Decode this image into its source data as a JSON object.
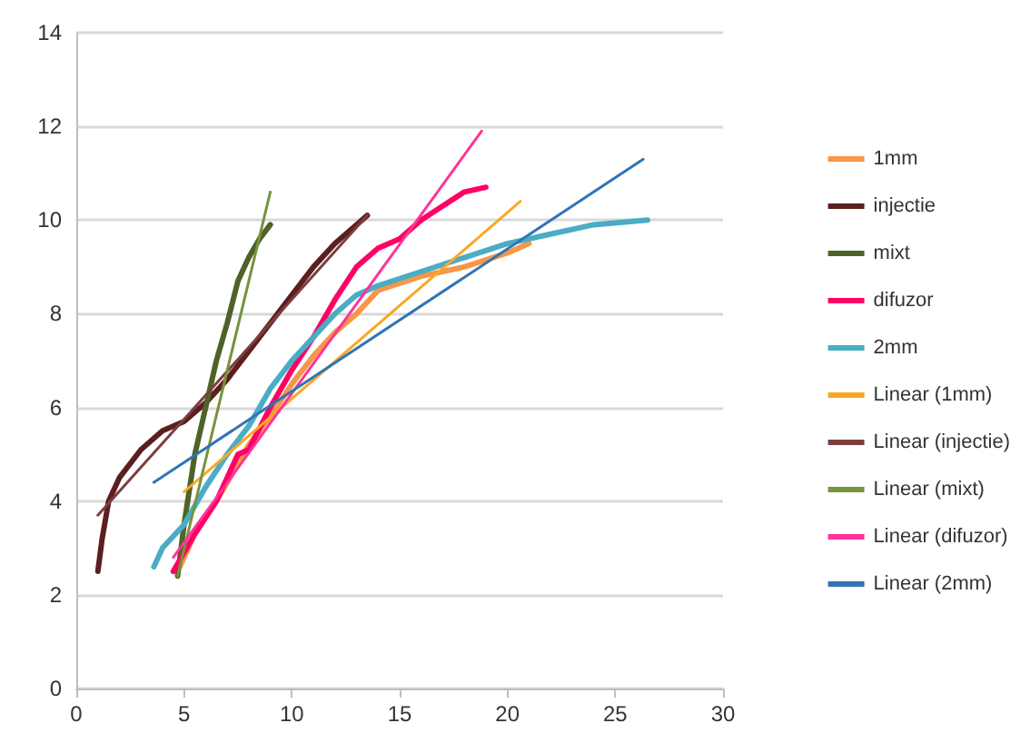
{
  "chart_data": {
    "type": "line",
    "xlim": [
      0,
      30
    ],
    "xticks": [
      0,
      5,
      10,
      15,
      20,
      25,
      30
    ],
    "ylim": [
      0,
      14
    ],
    "yticks": [
      0,
      2,
      4,
      6,
      8,
      10,
      12,
      14
    ],
    "grid": "y",
    "legend": "right",
    "marker": "none",
    "line_style": "solid",
    "series": [
      {
        "name": "1mm",
        "color": "#f79646",
        "x": [
          4.8,
          5.5,
          6.5,
          7.5,
          8,
          9,
          10,
          11,
          12,
          13,
          14,
          16,
          18,
          20,
          21
        ],
        "values": [
          2.6,
          3.3,
          4.0,
          4.8,
          5.2,
          5.8,
          6.5,
          7.1,
          7.6,
          8.0,
          8.5,
          8.8,
          9.0,
          9.3,
          9.5
        ]
      },
      {
        "name": "injectie",
        "color": "#5c1f1f",
        "x": [
          1,
          1.2,
          1.5,
          2,
          3,
          4,
          5,
          6,
          7,
          8,
          9,
          10,
          11,
          12,
          13,
          13.5
        ],
        "values": [
          2.5,
          3.2,
          4.0,
          4.5,
          5.1,
          5.5,
          5.7,
          6.1,
          6.6,
          7.2,
          7.8,
          8.4,
          9.0,
          9.5,
          9.9,
          10.1
        ]
      },
      {
        "name": "mixt",
        "color": "#4f6228",
        "x": [
          4.7,
          5,
          5.5,
          6,
          6.5,
          7,
          7.5,
          8,
          8.5,
          9
        ],
        "values": [
          2.4,
          3.5,
          5.0,
          6.0,
          7.0,
          7.8,
          8.7,
          9.2,
          9.6,
          9.9
        ]
      },
      {
        "name": "difuzor",
        "color": "#ff0066",
        "x": [
          4.5,
          5.5,
          6.5,
          7,
          7.5,
          8,
          9,
          10,
          11,
          12,
          13,
          14,
          15,
          16,
          17,
          18,
          19
        ],
        "values": [
          2.5,
          3.3,
          4.0,
          4.5,
          5.0,
          5.1,
          6.0,
          6.8,
          7.5,
          8.3,
          9.0,
          9.4,
          9.6,
          10.0,
          10.3,
          10.6,
          10.7
        ]
      },
      {
        "name": "2mm",
        "color": "#4bacc6",
        "x": [
          3.6,
          4,
          5,
          6,
          7,
          8,
          9,
          10,
          11,
          12,
          13,
          14,
          16,
          18,
          20,
          22,
          24,
          26.5
        ],
        "values": [
          2.6,
          3.0,
          3.5,
          4.3,
          5.0,
          5.6,
          6.4,
          7.0,
          7.5,
          8.0,
          8.4,
          8.6,
          8.9,
          9.2,
          9.5,
          9.7,
          9.9,
          10.0
        ]
      },
      {
        "name": "Linear (1mm)",
        "color": "#f9a825",
        "x": [
          5,
          20.6
        ],
        "values": [
          4.2,
          10.4
        ]
      },
      {
        "name": "Linear (injectie)",
        "color": "#7b3f3f",
        "x": [
          1,
          13.5
        ],
        "values": [
          3.7,
          10.1
        ]
      },
      {
        "name": "Linear (mixt)",
        "color": "#77933c",
        "x": [
          4.7,
          9
        ],
        "values": [
          2.4,
          10.6
        ]
      },
      {
        "name": "Linear (difuzor)",
        "color": "#ff3399",
        "x": [
          4.5,
          18.8
        ],
        "values": [
          2.8,
          11.9
        ]
      },
      {
        "name": "Linear (2mm)",
        "color": "#2e75b6",
        "x": [
          3.6,
          26.3
        ],
        "values": [
          4.4,
          11.3
        ]
      }
    ]
  }
}
